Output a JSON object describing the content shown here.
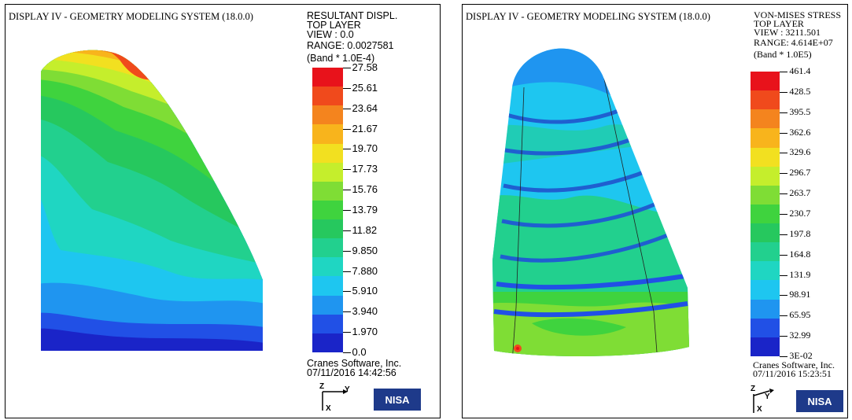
{
  "left": {
    "header": "DISPLAY IV - GEOMETRY MODELING SYSTEM (18.0.0)",
    "info": [
      "RESULTANT DISPL.",
      "TOP LAYER",
      "VIEW : 0.0",
      "RANGE: 0.0027581",
      "(Band * 1.0E-4)"
    ],
    "scale_labels": [
      "27.58",
      "25.61",
      "23.64",
      "21.67",
      "19.70",
      "17.73",
      "15.76",
      "13.79",
      "11.82",
      "9.850",
      "7.880",
      "5.910",
      "3.940",
      "1.970",
      "0.0"
    ],
    "company": "Cranes Software, Inc.",
    "timestamp": "07/11/2016 14:42:56",
    "logo": "NISA",
    "axis_labels": {
      "z": "Z",
      "y": "Y",
      "x": "X"
    }
  },
  "right": {
    "header": "DISPLAY IV - GEOMETRY MODELING SYSTEM (18.0.0)",
    "info": [
      "VON-MISES STRESS",
      "TOP LAYER",
      "VIEW : 3211.501",
      "RANGE: 4.614E+07",
      "(Band * 1.0E5)"
    ],
    "scale_labels": [
      "461.4",
      "428.5",
      "395.5",
      "362.6",
      "329.6",
      "296.7",
      "263.7",
      "230.7",
      "197.8",
      "164.8",
      "131.9",
      "98.91",
      "65.95",
      "32.99",
      "3E-02"
    ],
    "company": "Cranes Software, Inc.",
    "timestamp": "07/11/2016 15:23:51",
    "logo": "NISA",
    "axis_labels": {
      "z": "Z",
      "y": "Y",
      "x": "X"
    }
  },
  "band_colors": [
    "#e8121b",
    "#f04a1c",
    "#f4841e",
    "#f8b41c",
    "#f2e020",
    "#c5ee2c",
    "#7fdd35",
    "#3fd33e",
    "#26c85e",
    "#22d08e",
    "#1fd6c2",
    "#1ec6f0",
    "#1f95f0",
    "#2150e6",
    "#1a24c8"
  ]
}
